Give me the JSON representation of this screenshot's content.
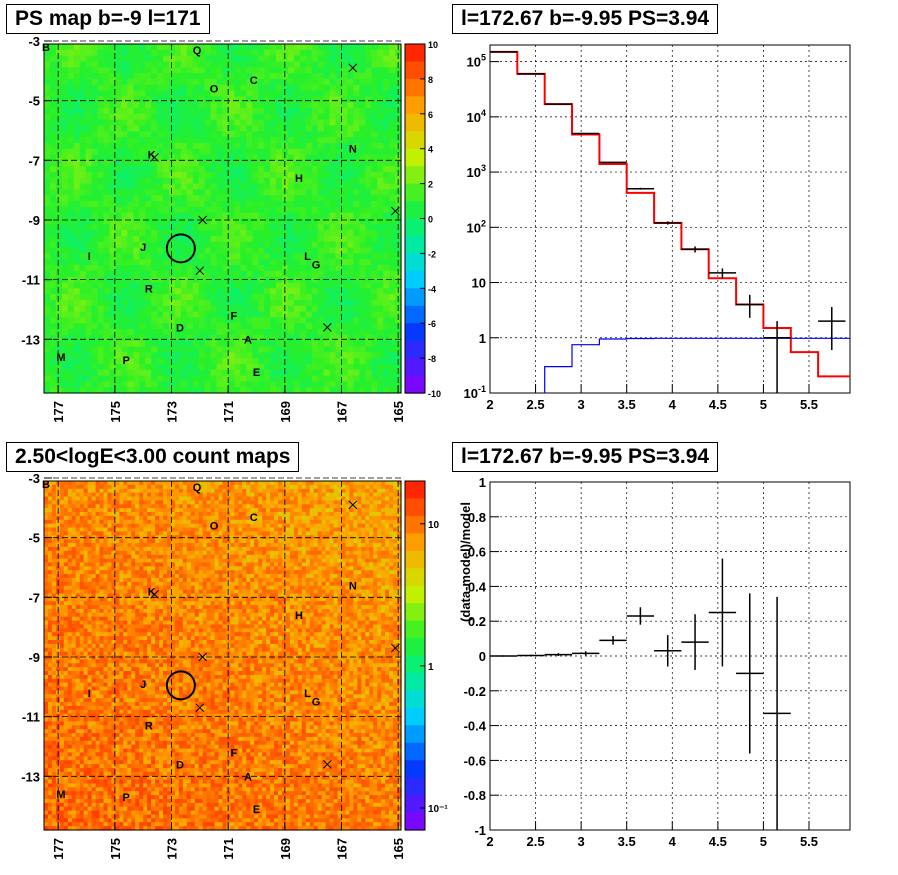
{
  "panels": {
    "ps_map": {
      "title": "PS map b=-9 l=171",
      "x_ticks": [
        "177",
        "175",
        "173",
        "171",
        "169",
        "167",
        "165"
      ],
      "y_ticks": [
        "-3",
        "-5",
        "-7",
        "-9",
        "-11",
        "-13"
      ],
      "colorbar_ticks": [
        "10",
        "8",
        "6",
        "4",
        "2",
        "0",
        "-2",
        "-4",
        "-6",
        "-8",
        "-10"
      ],
      "corner_label": "B"
    },
    "count_map": {
      "title": "2.50<logE<3.00 count maps",
      "x_ticks": [
        "177",
        "175",
        "173",
        "171",
        "169",
        "167",
        "165"
      ],
      "y_ticks": [
        "-3",
        "-5",
        "-7",
        "-9",
        "-11",
        "-13"
      ],
      "colorbar_ticks": [
        "10",
        "1",
        "10⁻¹"
      ],
      "corner_label": "B"
    },
    "spectrum": {
      "title": "l=172.67 b=-9.95 PS=3.94"
    },
    "residual": {
      "title": "l=172.67 b=-9.95 PS=3.94"
    }
  },
  "source_labels": [
    {
      "name": "Q",
      "l": 172.1,
      "b": -3.3
    },
    {
      "name": "C",
      "l": 170.1,
      "b": -4.3
    },
    {
      "name": "O",
      "l": 171.5,
      "b": -4.6
    },
    {
      "name": "N",
      "l": 166.6,
      "b": -6.6
    },
    {
      "name": "K",
      "l": 173.7,
      "b": -6.8
    },
    {
      "name": "H",
      "l": 168.5,
      "b": -7.6
    },
    {
      "name": "J",
      "l": 174.0,
      "b": -9.9
    },
    {
      "name": "I",
      "l": 175.9,
      "b": -10.2
    },
    {
      "name": "L",
      "l": 168.2,
      "b": -10.2
    },
    {
      "name": "G",
      "l": 167.9,
      "b": -10.5
    },
    {
      "name": "R",
      "l": 173.8,
      "b": -11.3
    },
    {
      "name": "F",
      "l": 170.8,
      "b": -12.2
    },
    {
      "name": "D",
      "l": 172.7,
      "b": -12.6
    },
    {
      "name": "A",
      "l": 170.3,
      "b": -13.0
    },
    {
      "name": "M",
      "l": 176.9,
      "b": -13.6
    },
    {
      "name": "P",
      "l": 174.6,
      "b": -13.7
    },
    {
      "name": "E",
      "l": 170.0,
      "b": -14.1
    }
  ],
  "chart_data": [
    {
      "type": "heatmap",
      "title": "PS map b=-9 l=171",
      "xlim": [
        177.5,
        164.9
      ],
      "ylim": [
        -14.8,
        -3.1
      ],
      "zlim": [
        -10,
        10
      ],
      "x_ticks": [
        177,
        175,
        173,
        171,
        169,
        167,
        165
      ],
      "y_ticks": [
        -3,
        -5,
        -7,
        -9,
        -11,
        -13
      ],
      "z_ticks": [
        10,
        8,
        6,
        4,
        2,
        0,
        -2,
        -4,
        -6,
        -8,
        -10
      ],
      "typical_value": 1,
      "marked_position": {
        "l": 172.67,
        "b": -9.95
      },
      "crosses": [
        {
          "l": 166.6,
          "b": -3.9
        },
        {
          "l": 173.6,
          "b": -6.9
        },
        {
          "l": 171.9,
          "b": -9.0
        },
        {
          "l": 165.1,
          "b": -8.7
        },
        {
          "l": 172.0,
          "b": -10.7
        },
        {
          "l": 167.5,
          "b": -12.6
        }
      ],
      "grid": true
    },
    {
      "type": "line",
      "title": "l=172.67 b=-9.95 PS=3.94",
      "xlim": [
        2,
        5.95
      ],
      "ylim": [
        0.1,
        200000
      ],
      "y_scale": "log",
      "x_ticks": [
        2,
        2.5,
        3,
        3.5,
        4,
        4.5,
        5,
        5.5
      ],
      "y_ticks": [
        0.1,
        1,
        10,
        100,
        1000,
        10000,
        100000
      ],
      "series": [
        {
          "color": "#ff0000",
          "type": "step",
          "edges": [
            2.0,
            2.3,
            2.6,
            2.9,
            3.2,
            3.5,
            3.8,
            4.1,
            4.4,
            4.7,
            5.0,
            5.3,
            5.6,
            5.95
          ],
          "values": [
            150000,
            60000,
            17000,
            4800,
            1400,
            420,
            120,
            40,
            12,
            4,
            1.5,
            0.55,
            0.2
          ]
        },
        {
          "color": "#0000ff",
          "type": "step",
          "edges": [
            2.6,
            2.9,
            3.2,
            3.5,
            3.8,
            4.1,
            4.4,
            4.7,
            5.0,
            5.3,
            5.6,
            5.95
          ],
          "values": [
            0.3,
            0.75,
            0.95,
            0.97,
            0.98,
            0.98,
            0.98,
            0.98,
            0.98,
            0.98,
            0.98
          ]
        },
        {
          "color": "#000000",
          "type": "points",
          "x": [
            2.15,
            2.45,
            2.75,
            3.05,
            3.35,
            3.65,
            3.95,
            4.25,
            4.55,
            4.85,
            5.15,
            5.75
          ],
          "y": [
            150000,
            60000,
            17000,
            5000,
            1500,
            500,
            120,
            40,
            15,
            4,
            1,
            2
          ],
          "xerr": [
            0.15,
            0.15,
            0.15,
            0.15,
            0.15,
            0.15,
            0.15,
            0.15,
            0.15,
            0.15,
            0.15,
            0.15
          ],
          "ylo": [
            149000,
            59500,
            16800,
            4900,
            1460,
            480,
            112,
            35,
            12,
            2.3,
            0.1,
            0.6
          ],
          "yhi": [
            151000,
            60500,
            17200,
            5100,
            1540,
            520,
            128,
            45,
            18,
            6,
            2,
            3.6
          ]
        }
      ],
      "grid": true
    },
    {
      "type": "heatmap",
      "title": "2.50<logE<3.00 count maps",
      "xlim": [
        177.5,
        164.9
      ],
      "ylim": [
        -14.8,
        -3.1
      ],
      "z_scale": "log",
      "zlim": [
        0.07,
        20
      ],
      "x_ticks": [
        177,
        175,
        173,
        171,
        169,
        167,
        165
      ],
      "y_ticks": [
        -3,
        -5,
        -7,
        -9,
        -11,
        -13
      ],
      "z_ticks": [
        10,
        1,
        0.1
      ],
      "typical_value": 7,
      "marked_position": {
        "l": 172.67,
        "b": -9.95
      },
      "crosses": [
        {
          "l": 166.6,
          "b": -3.9
        },
        {
          "l": 173.6,
          "b": -6.9
        },
        {
          "l": 171.9,
          "b": -9.0
        },
        {
          "l": 165.1,
          "b": -8.7
        },
        {
          "l": 172.0,
          "b": -10.7
        },
        {
          "l": 167.5,
          "b": -12.6
        }
      ],
      "grid": true
    },
    {
      "type": "scatter",
      "title": "l=172.67 b=-9.95 PS=3.94",
      "ylabel": "(data-model)/model",
      "xlim": [
        2,
        5.95
      ],
      "ylim": [
        -1,
        1
      ],
      "x_ticks": [
        2,
        2.5,
        3,
        3.5,
        4,
        4.5,
        5,
        5.5
      ],
      "y_ticks": [
        1,
        0.8,
        0.6,
        0.4,
        0.2,
        0,
        -0.2,
        -0.4,
        -0.6,
        -0.8,
        -1
      ],
      "series": [
        {
          "color": "#000000",
          "x": [
            2.15,
            2.45,
            2.75,
            3.05,
            3.35,
            3.65,
            3.95,
            4.25,
            4.55,
            4.85,
            5.15
          ],
          "y": [
            0.0,
            0.003,
            0.008,
            0.015,
            0.09,
            0.23,
            0.03,
            0.08,
            0.25,
            -0.1,
            -0.33
          ],
          "xerr": [
            0.15,
            0.15,
            0.15,
            0.15,
            0.15,
            0.15,
            0.15,
            0.15,
            0.15,
            0.15,
            0.15
          ],
          "yerr": [
            0.004,
            0.005,
            0.008,
            0.012,
            0.025,
            0.05,
            0.09,
            0.16,
            0.31,
            0.46,
            0.67
          ]
        }
      ],
      "grid": true
    }
  ],
  "colors": {
    "frame": "#000000",
    "grid": "#000000",
    "model": "#ff0000",
    "component": "#0000ff",
    "data": "#000000"
  }
}
